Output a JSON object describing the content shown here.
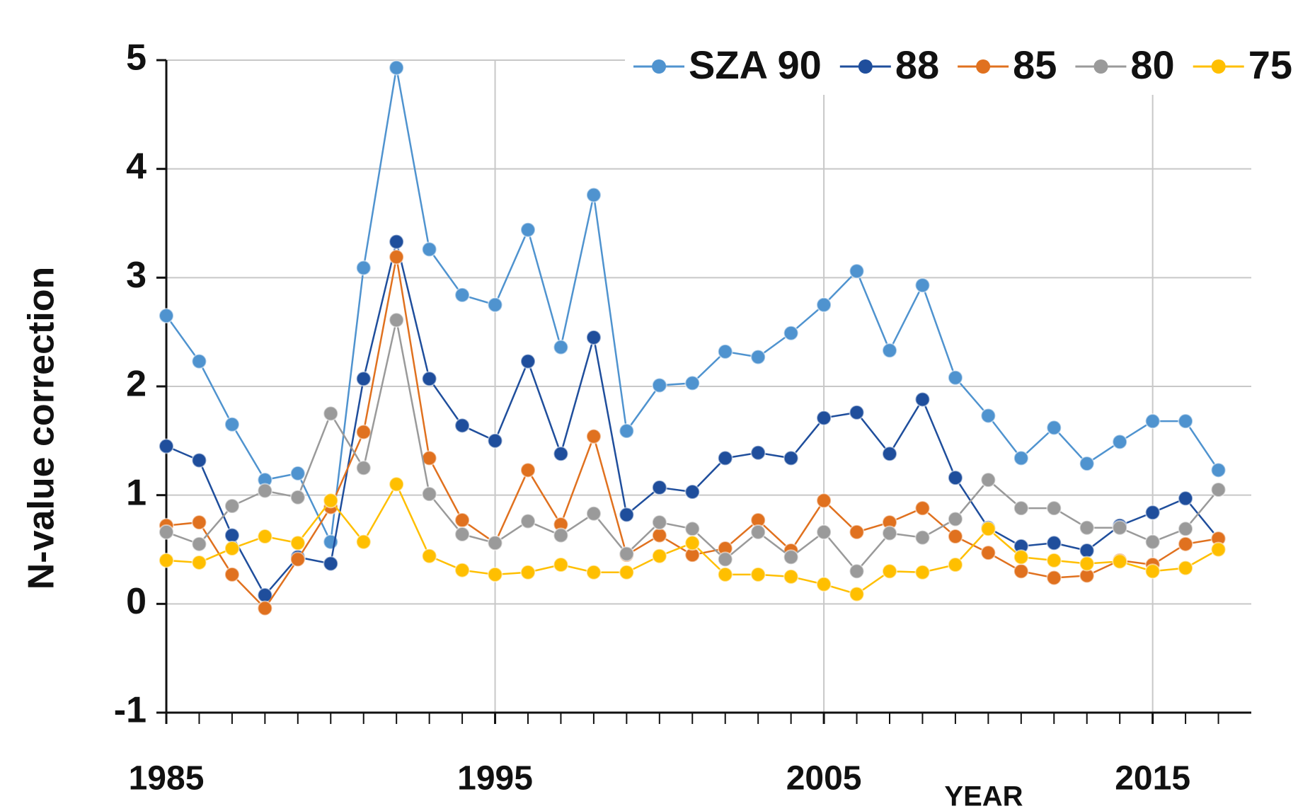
{
  "chart_data": {
    "type": "line",
    "x": [
      1985,
      1986,
      1987,
      1988,
      1989,
      1990,
      1991,
      1992,
      1993,
      1994,
      1995,
      1996,
      1997,
      1998,
      1999,
      2000,
      2001,
      2002,
      2003,
      2004,
      2005,
      2006,
      2007,
      2008,
      2009,
      2010,
      2011,
      2012,
      2013,
      2014,
      2015,
      2016,
      2017
    ],
    "series": [
      {
        "name": "SZA 90",
        "color": "#4f93cf",
        "values": [
          2.65,
          2.23,
          1.65,
          1.14,
          1.2,
          0.57,
          3.09,
          4.93,
          3.26,
          2.84,
          2.75,
          3.44,
          2.36,
          3.76,
          1.59,
          2.01,
          2.03,
          2.32,
          2.27,
          2.49,
          2.75,
          3.06,
          2.33,
          2.93,
          2.08,
          1.73,
          1.34,
          1.62,
          1.29,
          1.49,
          1.68,
          1.68,
          1.23
        ]
      },
      {
        "name": "88",
        "color": "#1f4e9c",
        "values": [
          1.45,
          1.32,
          0.63,
          0.08,
          0.43,
          0.37,
          2.07,
          3.33,
          2.07,
          1.64,
          1.5,
          2.23,
          1.38,
          2.45,
          0.82,
          1.07,
          1.03,
          1.34,
          1.39,
          1.34,
          1.71,
          1.76,
          1.38,
          1.88,
          1.16,
          0.7,
          0.53,
          0.56,
          0.49,
          0.72,
          0.84,
          0.97,
          0.6
        ]
      },
      {
        "name": "85",
        "color": "#e0711f",
        "values": [
          0.72,
          0.75,
          0.27,
          -0.04,
          0.41,
          0.89,
          1.58,
          3.19,
          1.34,
          0.77,
          0.56,
          1.23,
          0.73,
          1.54,
          0.45,
          0.63,
          0.45,
          0.51,
          0.77,
          0.49,
          0.95,
          0.66,
          0.75,
          0.88,
          0.62,
          0.47,
          0.3,
          0.24,
          0.26,
          0.4,
          0.36,
          0.55,
          0.6
        ]
      },
      {
        "name": "80",
        "color": "#9a9a9a",
        "values": [
          0.66,
          0.55,
          0.9,
          1.04,
          0.98,
          1.75,
          1.25,
          2.61,
          1.01,
          0.64,
          0.56,
          0.76,
          0.63,
          0.83,
          0.46,
          0.75,
          0.69,
          0.41,
          0.66,
          0.43,
          0.66,
          0.3,
          0.65,
          0.61,
          0.78,
          1.14,
          0.88,
          0.88,
          0.7,
          0.7,
          0.57,
          0.69,
          1.05
        ]
      },
      {
        "name": "75",
        "color": "#ffbf00",
        "values": [
          0.4,
          0.38,
          0.51,
          0.62,
          0.56,
          0.95,
          0.57,
          1.1,
          0.44,
          0.31,
          0.27,
          0.29,
          0.36,
          0.29,
          0.29,
          0.44,
          0.56,
          0.27,
          0.27,
          0.25,
          0.18,
          0.09,
          0.3,
          0.29,
          0.36,
          0.69,
          0.43,
          0.4,
          0.37,
          0.39,
          0.3,
          0.33,
          0.5
        ]
      }
    ],
    "xlabel": "YEAR",
    "ylabel": "N-value correction",
    "xlim": [
      1985,
      2018
    ],
    "xticks": [
      1985,
      1995,
      2005,
      2015
    ],
    "ylim": [
      -1,
      5
    ],
    "yticks": [
      -1,
      0,
      1,
      2,
      3,
      4,
      5
    ],
    "grid": true,
    "legend": "top-right"
  }
}
